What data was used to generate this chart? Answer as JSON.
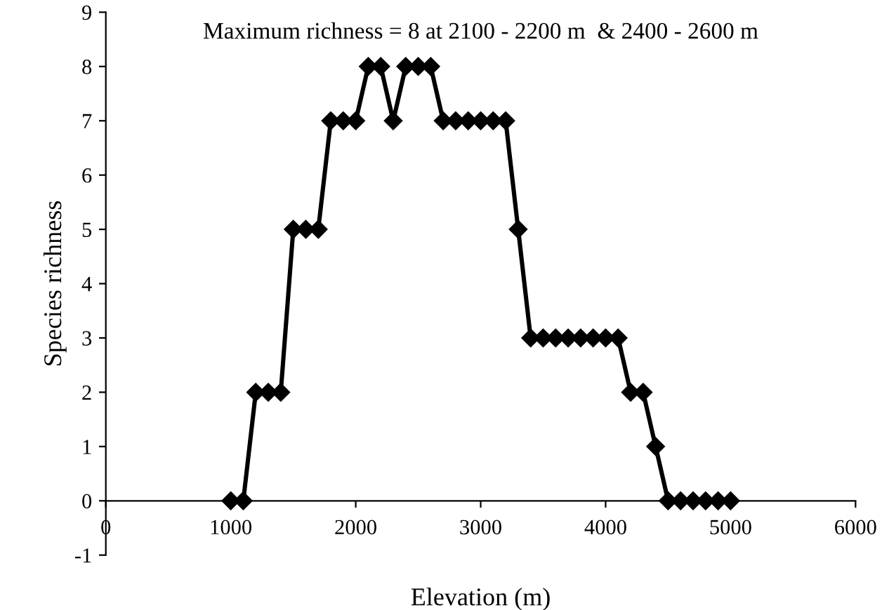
{
  "chart_data": {
    "type": "line",
    "title": "Maximum richness = 8 at 2100 - 2200 m  & 2400 - 2600 m",
    "xlabel": "Elevation (m)",
    "ylabel": "Species richness",
    "x": [
      1000,
      1100,
      1200,
      1300,
      1400,
      1500,
      1600,
      1700,
      1800,
      1900,
      2000,
      2100,
      2200,
      2300,
      2400,
      2500,
      2600,
      2700,
      2800,
      2900,
      3000,
      3100,
      3200,
      3300,
      3400,
      3500,
      3600,
      3700,
      3800,
      3900,
      4000,
      4100,
      4200,
      4300,
      4400,
      4500,
      4600,
      4700,
      4800,
      4900,
      5000
    ],
    "series": [
      {
        "color": "#000000",
        "values": [
          0,
          0,
          2,
          2,
          2,
          5,
          5,
          5,
          7,
          7,
          7,
          8,
          8,
          7,
          8,
          8,
          8,
          7,
          7,
          7,
          7,
          7,
          7,
          5,
          3,
          3,
          3,
          3,
          3,
          3,
          3,
          3,
          2,
          2,
          1,
          0,
          0,
          0,
          0,
          0,
          0
        ]
      }
    ],
    "xlim": [
      0,
      6000
    ],
    "xticks": [
      0,
      1000,
      2000,
      3000,
      4000,
      5000,
      6000
    ],
    "ylim": [
      -1,
      9
    ],
    "yticks": [
      -1,
      0,
      1,
      2,
      3,
      4,
      5,
      6,
      7,
      8,
      9
    ],
    "marker": "diamond",
    "line_style": "solid",
    "grid": false,
    "legend": false
  }
}
